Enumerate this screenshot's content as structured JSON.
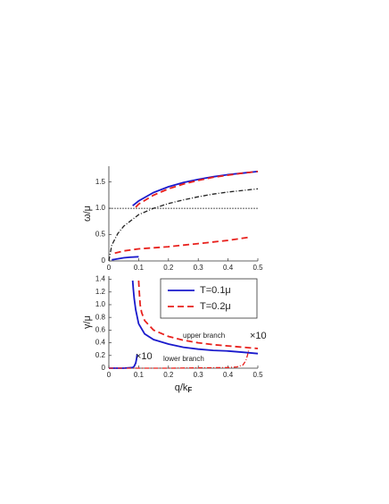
{
  "chart_data": [
    {
      "type": "line",
      "y_label": "ω/μ",
      "xlim": [
        0,
        0.5
      ],
      "ylim": [
        0,
        1.8
      ],
      "xticks": [
        0,
        0.1,
        0.2,
        0.3,
        0.4,
        0.5
      ],
      "yticks": [
        0,
        0.5,
        {
          "value": 1,
          "label": "1.0"
        },
        1.5
      ],
      "series": [
        {
          "color": "#1a1acc",
          "dash": "solid",
          "x": [
            0.08,
            0.1,
            0.15,
            0.2,
            0.25,
            0.3,
            0.35,
            0.4,
            0.45,
            0.5
          ],
          "values": [
            1.05,
            1.14,
            1.3,
            1.41,
            1.49,
            1.55,
            1.6,
            1.64,
            1.67,
            1.7
          ]
        },
        {
          "color": "#e8211d",
          "dash": "dashed",
          "x": [
            0.09,
            0.1,
            0.15,
            0.2,
            0.25,
            0.3,
            0.35,
            0.4,
            0.45,
            0.5
          ],
          "values": [
            1.02,
            1.08,
            1.25,
            1.37,
            1.46,
            1.53,
            1.59,
            1.63,
            1.67,
            1.7
          ]
        },
        {
          "color": "#222222",
          "dash": "dashdot",
          "x": [
            0,
            0.01,
            0.03,
            0.05,
            0.1,
            0.15,
            0.2,
            0.25,
            0.3,
            0.35,
            0.4,
            0.45,
            0.5
          ],
          "values": [
            0,
            0.3,
            0.52,
            0.66,
            0.88,
            1.0,
            1.09,
            1.16,
            1.22,
            1.27,
            1.31,
            1.34,
            1.37
          ]
        },
        {
          "color": "#222222",
          "dash": "thin",
          "x": [
            0,
            0.5
          ],
          "values": [
            1,
            1
          ]
        },
        {
          "color": "#e8211d",
          "dash": "dashed",
          "x": [
            0.02,
            0.05,
            0.1,
            0.15,
            0.2,
            0.25,
            0.3,
            0.35,
            0.4,
            0.47
          ],
          "values": [
            0.15,
            0.19,
            0.23,
            0.25,
            0.27,
            0.3,
            0.33,
            0.36,
            0.39,
            0.45
          ]
        },
        {
          "color": "#1a1acc",
          "dash": "solid",
          "x": [
            0.01,
            0.03,
            0.05,
            0.07,
            0.1
          ],
          "values": [
            0.02,
            0.04,
            0.06,
            0.07,
            0.08
          ]
        }
      ]
    },
    {
      "type": "line",
      "y_label": "γ/μ",
      "x_label": "q/k",
      "x_label_subscript": "F",
      "xlim": [
        0,
        0.5
      ],
      "ylim": [
        0,
        1.45
      ],
      "xticks": [
        0,
        0.1,
        0.2,
        0.3,
        0.4,
        0.5
      ],
      "yticks": [
        0,
        0.2,
        0.4,
        0.6,
        0.8,
        {
          "value": 1,
          "label": "1.0"
        },
        1.2,
        1.4
      ],
      "legend": "upper right",
      "annotations": [
        "×10",
        "×10",
        "upper branch",
        "lower branch"
      ],
      "series": [
        {
          "name": "T=0.1μ",
          "color": "#1a1acc",
          "dash": "solid",
          "x": [
            0.08,
            0.082,
            0.085,
            0.09,
            0.1,
            0.12,
            0.15,
            0.2,
            0.25,
            0.3,
            0.35,
            0.4,
            0.45,
            0.5
          ],
          "values": [
            1.38,
            1.25,
            1.1,
            0.92,
            0.7,
            0.54,
            0.45,
            0.38,
            0.33,
            0.3,
            0.28,
            0.27,
            0.25,
            0.23
          ]
        },
        {
          "name": "T=0.2μ",
          "color": "#e8211d",
          "dash": "dashed",
          "x": [
            0.1,
            0.102,
            0.105,
            0.11,
            0.12,
            0.15,
            0.2,
            0.25,
            0.3,
            0.35,
            0.4,
            0.45,
            0.5
          ],
          "values": [
            1.38,
            1.2,
            1.0,
            0.88,
            0.75,
            0.6,
            0.5,
            0.44,
            0.4,
            0.37,
            0.35,
            0.33,
            0.31
          ]
        },
        {
          "color": "#1a1acc",
          "dash": "solid",
          "x": [
            0,
            0.05,
            0.08,
            0.085,
            0.09,
            0.093,
            0.095
          ],
          "values": [
            0,
            0,
            0.01,
            0.03,
            0.08,
            0.15,
            0.22
          ]
        },
        {
          "color": "#e8211d",
          "dash": "dashdot",
          "x": [
            0,
            0.2,
            0.4,
            0.43,
            0.45,
            0.46,
            0.465,
            0.47
          ],
          "values": [
            0,
            0,
            0.01,
            0.02,
            0.05,
            0.12,
            0.2,
            0.3
          ]
        }
      ]
    }
  ]
}
